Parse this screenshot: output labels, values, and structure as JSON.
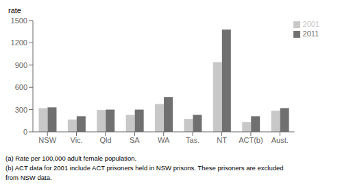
{
  "chart_data": {
    "type": "bar",
    "ylabel": "rate",
    "categories": [
      "NSW",
      "Vic.",
      "Qld",
      "SA",
      "WA",
      "Tas.",
      "NT",
      "ACT(b)",
      "Aust."
    ],
    "series": [
      {
        "name": "2001",
        "color": "#c8c8c8",
        "values": [
          320,
          165,
          295,
          230,
          375,
          175,
          940,
          130,
          285
        ]
      },
      {
        "name": "2011",
        "color": "#707070",
        "values": [
          330,
          210,
          300,
          300,
          470,
          230,
          1380,
          210,
          320
        ]
      }
    ],
    "ylim": [
      0,
      1500
    ],
    "yticks": [
      0,
      300,
      600,
      900,
      1200,
      1500
    ],
    "grid": false,
    "legend": "upper right",
    "footnotes": [
      "(a) Rate per 100,000 adult female population.",
      "(b) ACT data for 2001 include ACT prisoners held in NSW prisons. These prisoners are excluded",
      "from NSW data."
    ]
  }
}
